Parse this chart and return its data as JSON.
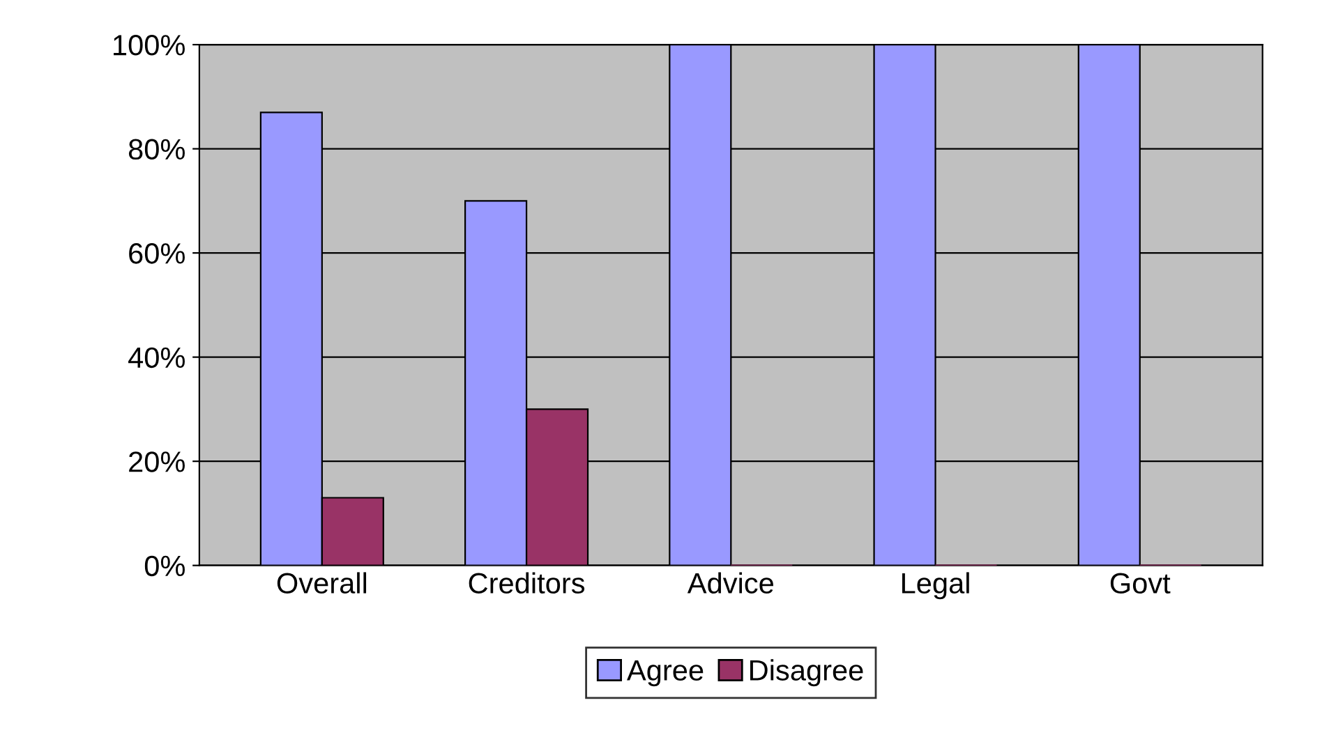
{
  "chart_data": {
    "type": "bar",
    "categories": [
      "Overall",
      "Creditors",
      "Advice",
      "Legal",
      "Govt"
    ],
    "series": [
      {
        "name": "Agree",
        "color": "#9999ff",
        "values": [
          87,
          70,
          100,
          100,
          100
        ]
      },
      {
        "name": "Disagree",
        "color": "#993366",
        "values": [
          13,
          30,
          0,
          0,
          0
        ]
      }
    ],
    "ylim": [
      0,
      100
    ],
    "yticks": [
      {
        "value": 0,
        "label": "0%"
      },
      {
        "value": 20,
        "label": "20%"
      },
      {
        "value": 40,
        "label": "40%"
      },
      {
        "value": 60,
        "label": "60%"
      },
      {
        "value": 80,
        "label": "80%"
      },
      {
        "value": 100,
        "label": "100%"
      }
    ],
    "grid": "y",
    "legend": "bottom"
  }
}
